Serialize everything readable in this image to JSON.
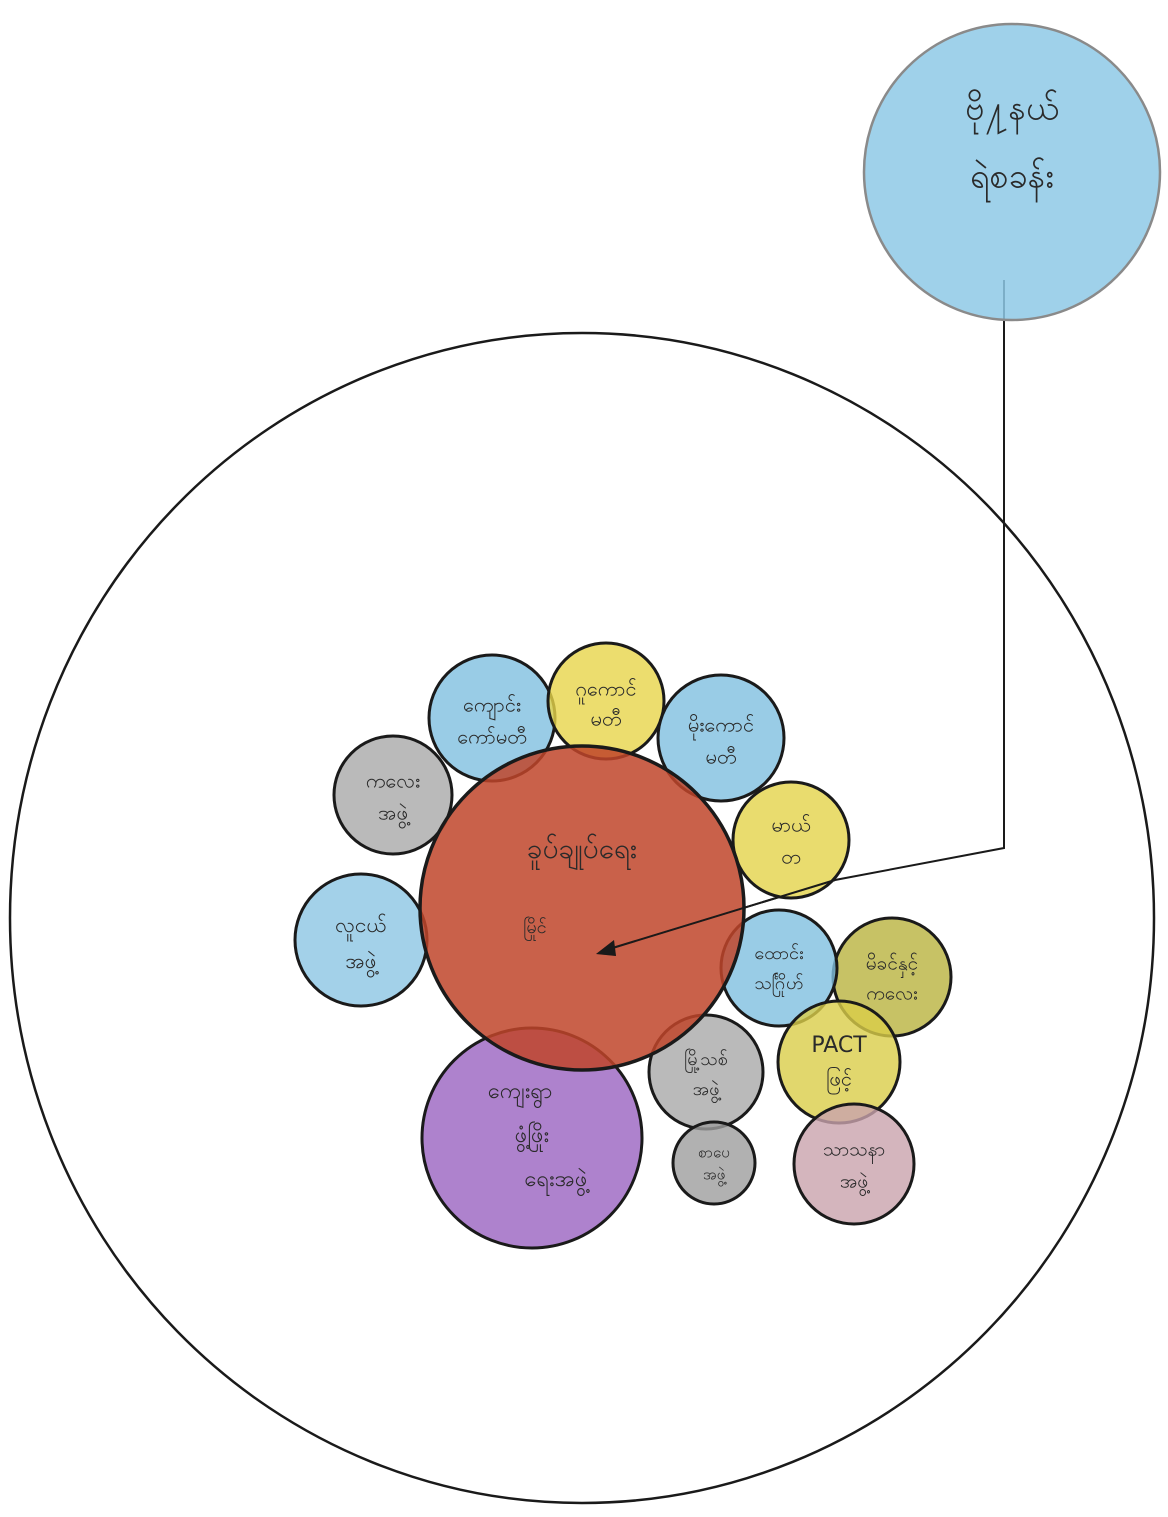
{
  "external_circle": {
    "lines": [
      "ဗို႔နယ်",
      "ရဲစခန်း"
    ],
    "fill": "#8ec9e6"
  },
  "center_circle": {
    "lines": [
      "ခူပ်ချုပ်ရေး",
      "မြိုင်"
    ],
    "fill": "#c0452a"
  },
  "small_circles": [
    {
      "id": "top-left-blue",
      "lines": [
        "ကျောင်း",
        "ကော်မတီ"
      ],
      "fill": "#7fbfe0"
    },
    {
      "id": "top-yellow",
      "lines": [
        "ဂူကောင်",
        "မတီ"
      ],
      "fill": "#e7d54a"
    },
    {
      "id": "top-right-blue",
      "lines": [
        "မိုးကောင်",
        "မတီ"
      ],
      "fill": "#7fbfe0"
    },
    {
      "id": "left-gray",
      "lines": [
        "ကလေး",
        "အဖွဲ့"
      ],
      "fill": "#a9a9a9"
    },
    {
      "id": "right-yellow",
      "lines": [
        "မာယ်",
        "တ"
      ],
      "fill": "#e4d34a"
    },
    {
      "id": "left-blue",
      "lines": [
        "လူငယ်",
        "အဖွဲ့"
      ],
      "fill": "#8cc6e4"
    },
    {
      "id": "right-blue",
      "lines": [
        "ထောင်း",
        "သင်္ဂြိုဟ်"
      ],
      "fill": "#7fbfe0"
    },
    {
      "id": "far-right-olive",
      "lines": [
        "မိခင်နှင့်",
        "ကလေး"
      ],
      "fill": "#b9b33e"
    },
    {
      "id": "purple",
      "lines": [
        "ကျေးရွာ",
        "ဖွံ့ဖြိုး",
        "ရေးအဖွဲ့"
      ],
      "fill": "#9a63c1"
    },
    {
      "id": "gray-mid",
      "lines": [
        "မြို့သစ်",
        "အဖွဲ့"
      ],
      "fill": "#a9a9a9"
    },
    {
      "id": "pact-yellow",
      "lines": [
        "PACT",
        "ဖြင့်"
      ],
      "fill": "#d9cd49"
    },
    {
      "id": "gray-small",
      "lines": [
        "စာပေ",
        "အဖွဲ့"
      ],
      "fill": "#9e9e9e"
    },
    {
      "id": "pink-gray",
      "lines": [
        "သာသနာ",
        "အဖွဲ့"
      ],
      "fill": "#c9a3ac"
    }
  ]
}
